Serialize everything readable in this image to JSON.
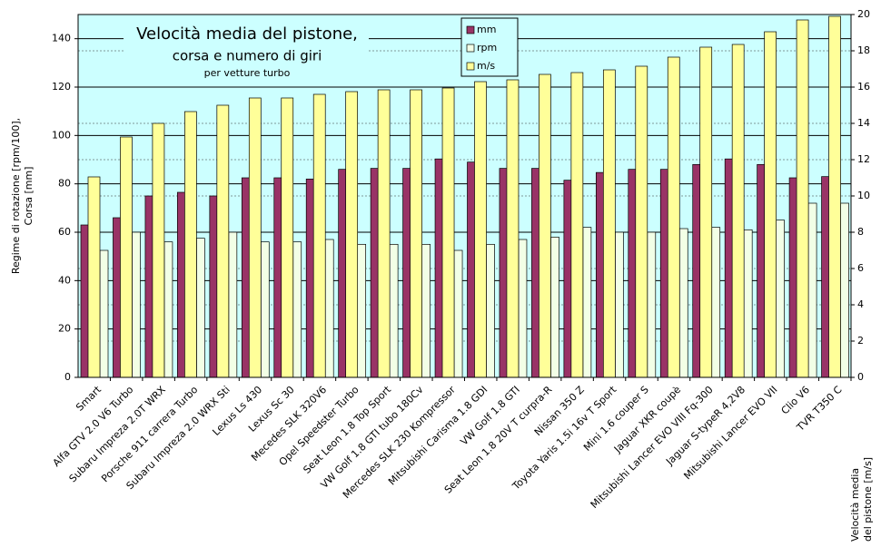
{
  "chart_data": {
    "type": "bar",
    "title": "Velocità media del pistone,",
    "subtitle": "corsa e numero di giri",
    "note": "per vetture turbo",
    "y_label": [
      "Regime di rotazione [rpm/100],",
      "Corsa [mm]"
    ],
    "y2_label": [
      "Velocità media",
      "del pistone [m/s]"
    ],
    "categories": [
      "Smart",
      "Alfa GTV 2.0 V6 Turbo",
      "Subaru Impreza 2.0T WRX",
      "Porsche 911 carrera Turbo",
      "Subaru Impreza 2.0 WRX Sti",
      "Lexus Ls 430",
      "Lexus Sc 30",
      "Mecedes SLK 320V6",
      "Opel Speedster Turbo",
      "Seat Leon 1.8 Top Sport",
      "VW Golf 1.8 GTI tubo 180Cv",
      "Mercedes SLK 230 Kompressor",
      "Mitsubishi Carisma 1.8 GDI",
      "VW Golf 1.8 GTI",
      "Seat Leon 1.8 20V T curpra-R",
      "Nissan 350 Z",
      "Toyota Yaris 1.5i 16v T Sport",
      "Mini 1.6 couper S",
      "Jaguar XKR coupè",
      "Mitsubishi Lancer EVO VIII Fq-300",
      "Jaguar S-typeR 4,2V8",
      "Mitsubishi Lancer EVO VII",
      "Clio V6",
      "TVR T350 C"
    ],
    "series": [
      {
        "name": "mm",
        "color": "#993366",
        "values": [
          63,
          66,
          75,
          76.5,
          75,
          82.5,
          82.5,
          82,
          86,
          86.4,
          86.4,
          90.3,
          89,
          86.4,
          86.4,
          81.5,
          84.7,
          86,
          86,
          88,
          90.3,
          88,
          82.5,
          83
        ]
      },
      {
        "name": "rpm",
        "color": "#f2ffe6",
        "values": [
          52.5,
          60,
          56,
          57.5,
          60,
          56,
          56,
          57,
          55,
          55,
          55,
          52.5,
          55,
          57,
          58,
          62,
          60,
          60,
          61.5,
          62,
          61,
          65,
          72,
          72
        ]
      },
      {
        "name": "m/s",
        "color": "#ffff99",
        "axis": "y2",
        "values": [
          11.05,
          13.25,
          14,
          14.65,
          15,
          15.4,
          15.4,
          15.6,
          15.75,
          15.85,
          15.85,
          15.95,
          16.3,
          16.4,
          16.7,
          16.8,
          16.95,
          17.15,
          17.65,
          18.2,
          18.35,
          19.05,
          19.7,
          19.9
        ]
      }
    ],
    "ylim": [
      0,
      150
    ],
    "yticks": [
      0,
      20,
      40,
      60,
      80,
      100,
      120,
      140
    ],
    "y2lim": [
      0,
      20
    ],
    "y2ticks": [
      0,
      2,
      4,
      6,
      8,
      10,
      12,
      14,
      16,
      18,
      20
    ],
    "grid": true
  }
}
